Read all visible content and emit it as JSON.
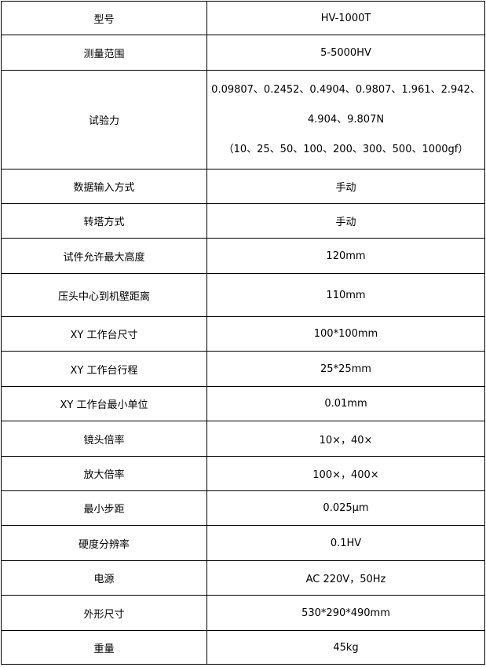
{
  "rows": [
    {
      "label": "型号",
      "value": "HV-1000T"
    },
    {
      "label": "测量范围",
      "value": "5-5000HV"
    },
    {
      "label": "试验力",
      "lines": [
        "0.09807、0.2452、0.4904、0.9807、1.961、2.942、",
        "4.904、9.807N",
        "（10、25、50、100、200、300、500、1000gf）"
      ]
    },
    {
      "label": "数据输入方式",
      "value": "手动"
    },
    {
      "label": "转塔方式",
      "value": "手动"
    },
    {
      "label": "试件允许最大高度",
      "value": "120mm"
    },
    {
      "label": "压头中心到机壁距离",
      "value": "110mm"
    },
    {
      "label": "XY 工作台尺寸",
      "value": "100*100mm"
    },
    {
      "label": "XY 工作台行程",
      "value": "25*25mm"
    },
    {
      "label": "XY 工作台最小单位",
      "value": "0.01mm"
    },
    {
      "label": "镜头倍率",
      "value": "10×，40×"
    },
    {
      "label": "放大倍率",
      "value": "100×，400×"
    },
    {
      "label": "最小步距",
      "value": "0.025μm"
    },
    {
      "label": "硬度分辨率",
      "value": "0.1HV"
    },
    {
      "label": "电源",
      "value": "AC 220V，50Hz"
    },
    {
      "label": "外形尺寸",
      "value": "530*290*490mm"
    },
    {
      "label": "重量",
      "value": "45kg"
    }
  ]
}
